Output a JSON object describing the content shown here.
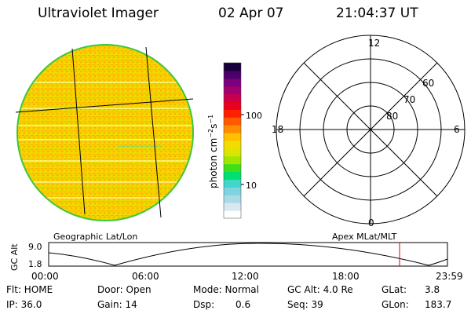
{
  "header": {
    "instrument": "Ultraviolet Imager",
    "date": "02 Apr 07",
    "time": "21:04:37 UT"
  },
  "colorbar": {
    "unit_label": "photon cm",
    "exp1": "−2",
    "mid": "s",
    "exp2": "−1",
    "tick_100": "100",
    "tick_10": "10",
    "colors": [
      "#ffffff",
      "#d9e7ef",
      "#a9dbe6",
      "#7fd3e0",
      "#40d6c8",
      "#00e070",
      "#3ee01a",
      "#a0e600",
      "#d8e600",
      "#f4dc00",
      "#ffc000",
      "#ff8c00",
      "#ff5a00",
      "#ff2000",
      "#e80020",
      "#c8004c",
      "#a00070",
      "#7a0080",
      "#4a0068",
      "#16003c"
    ]
  },
  "polar": {
    "mlt_12": "12",
    "mlt_18": "18",
    "mlt_6": "6",
    "mlt_0": "0",
    "lat_60": "60",
    "lat_70": "70",
    "lat_80": "80"
  },
  "labels": {
    "left_panel": "Geographic Lat/Lon",
    "right_panel": "Apex MLat/MLT"
  },
  "altitude_plot": {
    "ylabel": "GC Alt",
    "ytick_top": "9.0",
    "ytick_bottom": "1.8",
    "xticks": [
      "00:00",
      "06:00",
      "12:00",
      "18:00",
      "23:59"
    ]
  },
  "info": {
    "flt": "Flt: HOME",
    "ip": "IP: 36.0",
    "door": "Door: Open",
    "gain": "Gain: 14",
    "mode": "Mode: Normal",
    "dsp_label": "Dsp:",
    "dsp_value": "0.6",
    "gc_alt": "GC Alt: 4.0 Re",
    "seq": "Seq: 39",
    "glat_label": "GLat:",
    "glat_value": "3.8",
    "glon_label": "GLon:",
    "glon_value": "183.7"
  }
}
